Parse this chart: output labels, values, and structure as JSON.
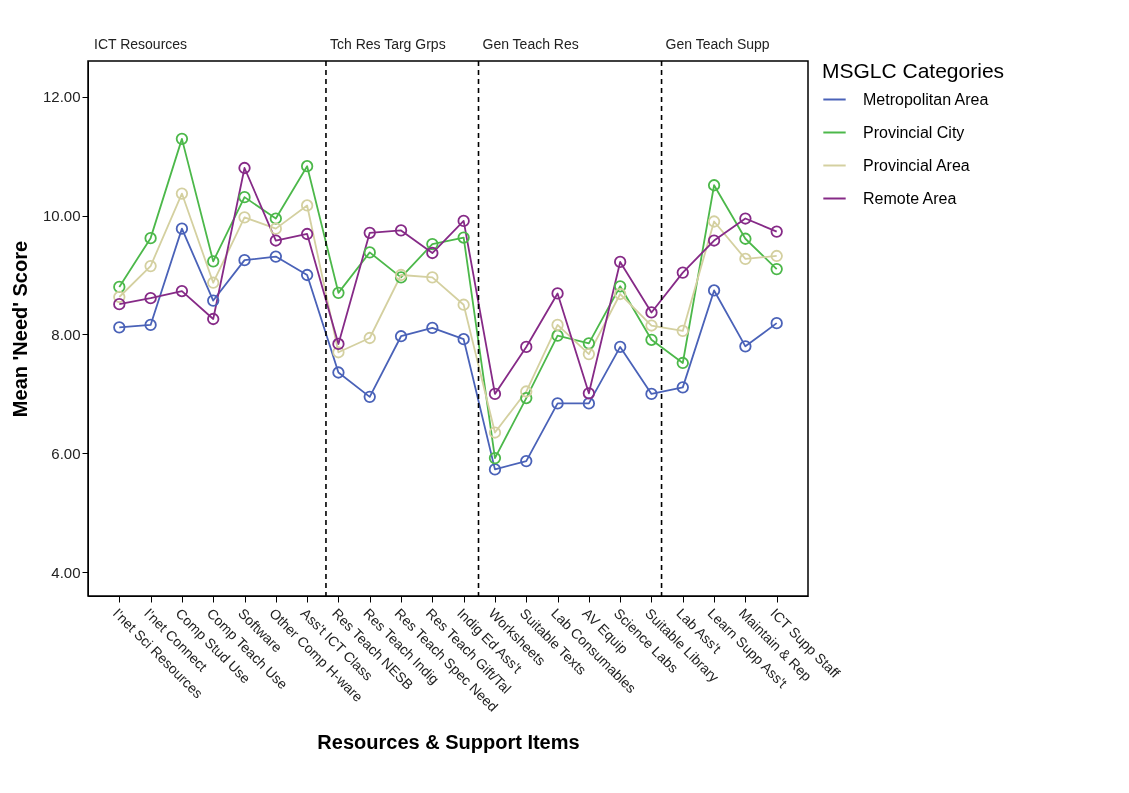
{
  "chart_data": {
    "type": "line",
    "xlabel": "Resources & Support Items",
    "ylabel": "Mean 'Need' Score",
    "legend_title": "MSGLC Categories",
    "categories": [
      "I'net Sci Resources",
      "I'net Connect",
      "Comp Stud Use",
      "Comp Teach Use",
      "Software",
      "Other Comp H-ware",
      "Ass't ICT Class",
      "Res Teach NESB",
      "Res Teach Indig",
      "Res Teach Spec Need",
      "Res Teach Gift/Tal",
      "Indig Ed Ass't",
      "Worksheets",
      "Suitable Texts",
      "Lab Consumables",
      "AV Equip",
      "Science Labs",
      "Suitable Library",
      "Lab Ass't",
      "Learn Supp Ass't",
      "Maintain & Rep",
      "ICT Supp Staff"
    ],
    "ylim": [
      3.6,
      12.6
    ],
    "yticks": [
      {
        "value": 4,
        "label": "4.00"
      },
      {
        "value": 6,
        "label": "6.00"
      },
      {
        "value": 8,
        "label": "8.00"
      },
      {
        "value": 10,
        "label": "10.00"
      },
      {
        "value": 12,
        "label": "12.00"
      }
    ],
    "series": [
      {
        "name": "Metropolitan Area",
        "color": "#4a62b8",
        "values": [
          8.12,
          8.16,
          9.78,
          8.57,
          9.25,
          9.31,
          9.0,
          7.36,
          6.95,
          7.97,
          8.11,
          7.92,
          5.73,
          5.87,
          6.84,
          6.84,
          7.79,
          7.0,
          7.11,
          8.74,
          7.8,
          8.19
        ]
      },
      {
        "name": "Provincial City",
        "color": "#4cb84a",
        "values": [
          8.8,
          9.62,
          11.29,
          9.23,
          10.31,
          9.95,
          10.83,
          8.7,
          9.38,
          8.96,
          9.52,
          9.63,
          5.92,
          6.93,
          7.98,
          7.85,
          8.81,
          7.91,
          7.52,
          10.51,
          9.61,
          9.1
        ]
      },
      {
        "name": "Provincial Area",
        "color": "#d4d0a0",
        "values": [
          8.63,
          9.15,
          10.37,
          8.87,
          9.97,
          9.78,
          10.17,
          7.7,
          7.94,
          9.0,
          8.96,
          8.5,
          6.35,
          7.04,
          8.16,
          7.67,
          8.68,
          8.15,
          8.06,
          9.9,
          9.27,
          9.32
        ]
      },
      {
        "name": "Remote Area",
        "color": "#862a87",
        "values": [
          8.51,
          8.61,
          8.73,
          8.26,
          10.8,
          9.58,
          9.69,
          7.84,
          9.71,
          9.75,
          9.37,
          9.91,
          7.0,
          7.79,
          8.69,
          7.01,
          9.22,
          8.37,
          9.04,
          9.58,
          9.95,
          9.73
        ]
      }
    ],
    "annotations": [
      "ICT Resources",
      "Tch Res Targ Grps",
      "Gen Teach Res",
      "Gen Teach Supp"
    ],
    "marker": "circle",
    "grid": false,
    "legend": "top right"
  }
}
